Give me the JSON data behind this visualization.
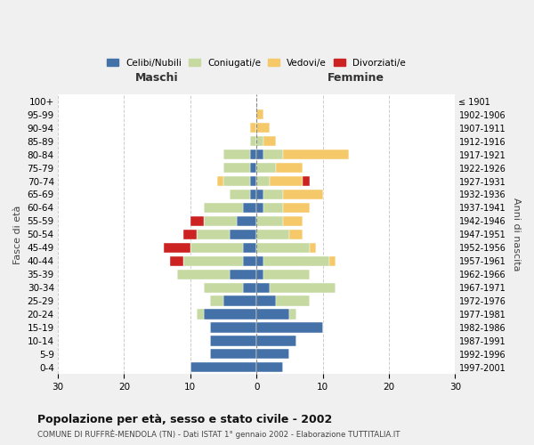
{
  "age_groups": [
    "0-4",
    "5-9",
    "10-14",
    "15-19",
    "20-24",
    "25-29",
    "30-34",
    "35-39",
    "40-44",
    "45-49",
    "50-54",
    "55-59",
    "60-64",
    "65-69",
    "70-74",
    "75-79",
    "80-84",
    "85-89",
    "90-94",
    "95-99",
    "100+"
  ],
  "birth_years": [
    "1997-2001",
    "1992-1996",
    "1987-1991",
    "1982-1986",
    "1977-1981",
    "1972-1976",
    "1967-1971",
    "1962-1966",
    "1957-1961",
    "1952-1956",
    "1947-1951",
    "1942-1946",
    "1937-1941",
    "1932-1936",
    "1927-1931",
    "1922-1926",
    "1917-1921",
    "1912-1916",
    "1907-1911",
    "1902-1906",
    "≤ 1901"
  ],
  "colors": {
    "celibi": "#4472a8",
    "coniugati": "#c5d9a0",
    "vedovi": "#f5c96a",
    "divorziati": "#cc2222"
  },
  "males": {
    "celibi": [
      10,
      7,
      7,
      7,
      8,
      5,
      2,
      4,
      2,
      2,
      4,
      3,
      2,
      1,
      1,
      1,
      1,
      0,
      0,
      0,
      0
    ],
    "coniugati": [
      0,
      0,
      0,
      0,
      1,
      2,
      6,
      8,
      9,
      8,
      5,
      5,
      6,
      3,
      4,
      4,
      4,
      1,
      0,
      0,
      0
    ],
    "vedovi": [
      0,
      0,
      0,
      0,
      0,
      0,
      0,
      0,
      0,
      0,
      0,
      0,
      0,
      0,
      1,
      0,
      0,
      0,
      1,
      0,
      0
    ],
    "divorziati": [
      0,
      0,
      0,
      0,
      0,
      0,
      0,
      0,
      2,
      4,
      2,
      2,
      0,
      0,
      0,
      0,
      0,
      0,
      0,
      0,
      0
    ]
  },
  "females": {
    "celibi": [
      4,
      5,
      6,
      10,
      5,
      3,
      2,
      1,
      1,
      0,
      0,
      0,
      1,
      1,
      0,
      0,
      1,
      0,
      0,
      0,
      0
    ],
    "coniugati": [
      0,
      0,
      0,
      0,
      1,
      5,
      10,
      7,
      10,
      8,
      5,
      4,
      3,
      3,
      2,
      3,
      3,
      1,
      0,
      0,
      0
    ],
    "vedovi": [
      0,
      0,
      0,
      0,
      0,
      0,
      0,
      0,
      1,
      1,
      2,
      3,
      4,
      6,
      5,
      4,
      10,
      2,
      2,
      1,
      0
    ],
    "divorziati": [
      0,
      0,
      0,
      0,
      0,
      0,
      0,
      0,
      0,
      0,
      0,
      0,
      0,
      0,
      1,
      0,
      0,
      0,
      0,
      0,
      0
    ]
  },
  "xlim": 30,
  "title": "Popolazione per età, sesso e stato civile - 2002",
  "subtitle": "COMUNE DI RUFFRÈ-MENDOLA (TN) - Dati ISTAT 1° gennaio 2002 - Elaborazione TUTTITALIA.IT",
  "ylabel": "Fasce di età",
  "ylabel_right": "Anni di nascita",
  "legend_labels": [
    "Celibi/Nubili",
    "Coniugati/e",
    "Vedovi/e",
    "Divorziati/e"
  ],
  "maschi_label": "Maschi",
  "femmine_label": "Femmine",
  "bg_color": "#f0f0f0",
  "plot_bg_color": "#ffffff"
}
